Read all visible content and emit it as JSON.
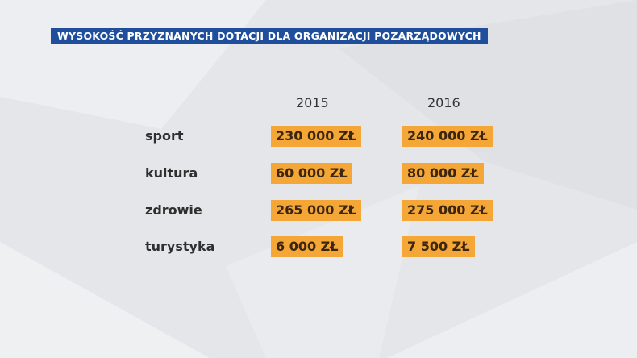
{
  "title": "WYSOKOŚĆ PRZYZNANYCH DOTACJI DLA ORGANIZACJI POZARZĄDOWYCH",
  "colors": {
    "title_bg": "#1f4f9c",
    "value_bg": "#f4a637",
    "background": "#e4e6ea"
  },
  "chart_data": {
    "type": "table",
    "title": "WYSOKOŚĆ PRZYZNANYCH DOTACJI DLA ORGANIZACJI POZARZĄDOWYCH",
    "columns": [
      "2015",
      "2016"
    ],
    "unit": "zł",
    "rows": [
      {
        "label": "sport",
        "values": [
          230000,
          240000
        ],
        "display": [
          "230 000 ZŁ",
          "240 000 ZŁ"
        ]
      },
      {
        "label": "kultura",
        "values": [
          60000,
          80000
        ],
        "display": [
          "60 000 ZŁ",
          "80 000 ZŁ"
        ]
      },
      {
        "label": "zdrowie",
        "values": [
          265000,
          275000
        ],
        "display": [
          "265 000 ZŁ",
          "275 000 ZŁ"
        ]
      },
      {
        "label": "turystyka",
        "values": [
          6000,
          7500
        ],
        "display": [
          "6 000 ZŁ",
          "7 500 ZŁ"
        ]
      }
    ]
  }
}
